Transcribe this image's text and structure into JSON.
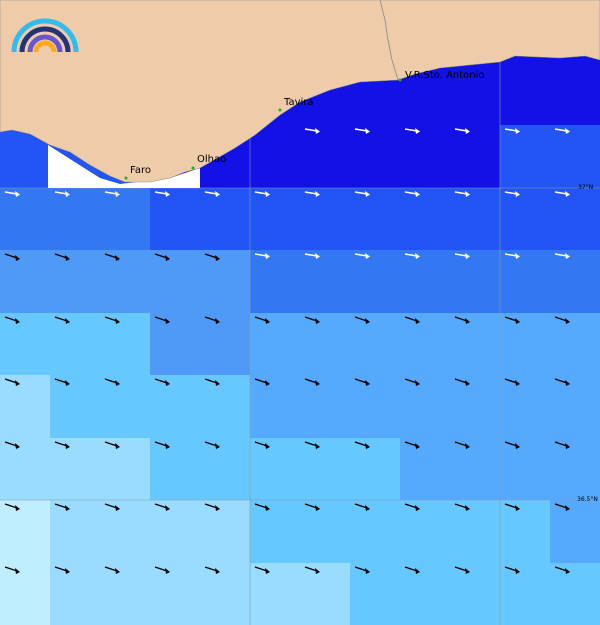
{
  "places": [
    "Faro",
    "Olhao",
    "Tavira",
    "V.R.Sto. Antonio"
  ],
  "latitude_labels": [
    "37°N",
    "36.5°N"
  ]
}
